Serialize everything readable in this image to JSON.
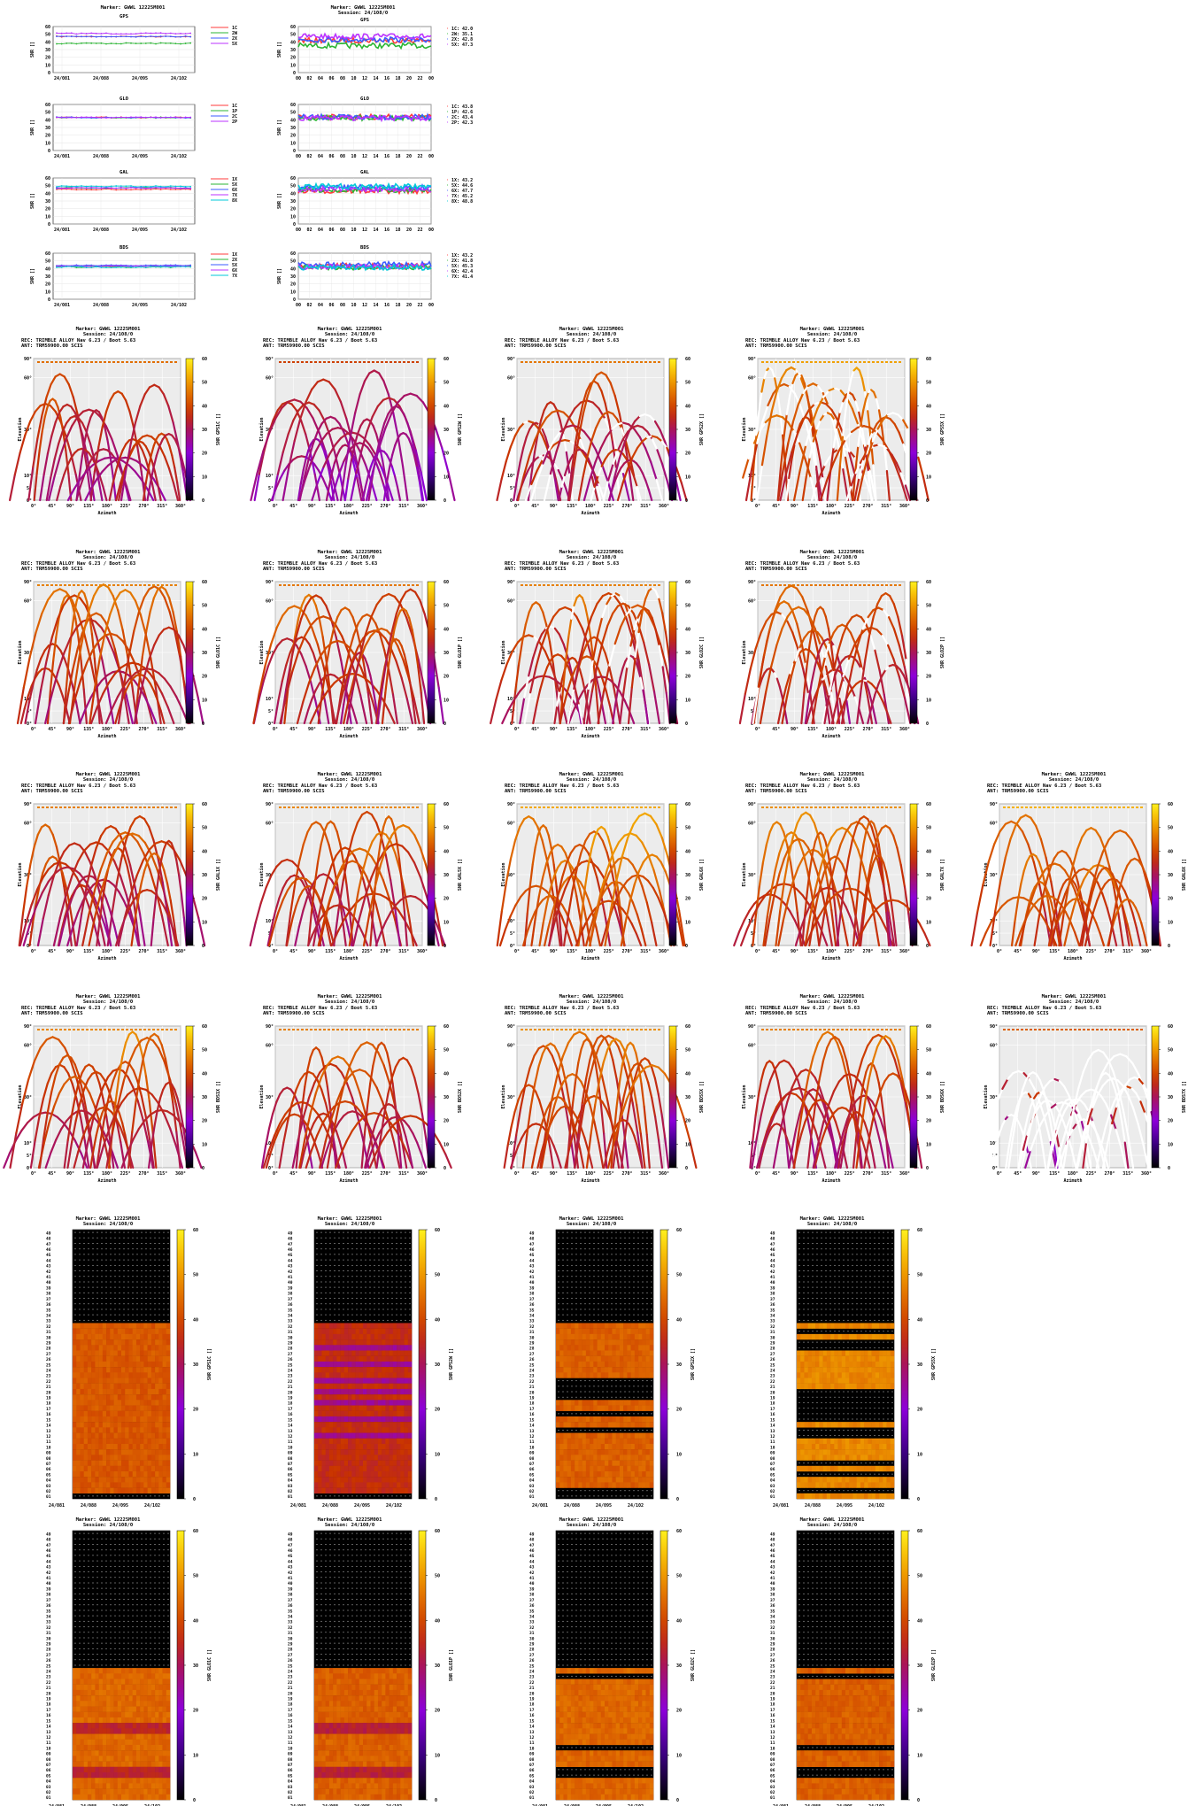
{
  "marker": "Marker: GWWL 12225M001",
  "session": "Session: 24/108/0",
  "rec_line": "REC: TRIMBLE ALLOY          Nav 6.23 / Boot 5.63",
  "ant_line": "ANT: TRM59900.00    SCIS",
  "labels": {
    "snr_axis": "SNR []",
    "elevation": "Elevation",
    "azimuth": "Azimuth"
  },
  "colors": {
    "gps": "#ff3b3b",
    "glo": "#2bb534",
    "gal": "#3b5bff",
    "bds": "#bb33ff",
    "cyan": "#00c9d8",
    "skyplot_bg": "#ececec",
    "heatmap_bg": "#000000"
  },
  "chart_data": {
    "type": "composite",
    "snr_rows": [
      {
        "name": "GPS",
        "daily": {
          "x_ticks": [
            "24/081",
            "24/088",
            "24/095",
            "24/102"
          ],
          "y_ticks": [
            0,
            10,
            20,
            30,
            40,
            50,
            60
          ],
          "ylim": [
            0,
            60
          ],
          "legend": [
            "1C",
            "2W",
            "2X",
            "5X"
          ],
          "series_levels": [
            47,
            38,
            47,
            51
          ]
        },
        "session": {
          "title": "GPS",
          "x_ticks": [
            "00",
            "02",
            "04",
            "06",
            "08",
            "10",
            "12",
            "14",
            "16",
            "18",
            "20",
            "22",
            "00"
          ],
          "y_ticks": [
            0,
            10,
            20,
            30,
            40,
            50,
            60
          ],
          "ylim": [
            0,
            60
          ],
          "legend": [
            "1C: 42.0",
            "2W: 35.1",
            "2X: 42.8",
            "5X: 47.3"
          ],
          "series_levels": [
            42.0,
            35.1,
            42.8,
            47.3
          ]
        }
      },
      {
        "name": "GLO",
        "daily": {
          "title": "GLO",
          "x_ticks": [
            "24/081",
            "24/088",
            "24/095",
            "24/102"
          ],
          "y_ticks": [
            0,
            10,
            20,
            30,
            40,
            50,
            60
          ],
          "ylim": [
            0,
            60
          ],
          "legend": [
            "1C",
            "1P",
            "2C",
            "2P"
          ],
          "series_levels": [
            43,
            43,
            43,
            43
          ]
        },
        "session": {
          "title": "GLO",
          "x_ticks": [
            "00",
            "02",
            "04",
            "06",
            "08",
            "10",
            "12",
            "14",
            "16",
            "18",
            "20",
            "22",
            "00"
          ],
          "y_ticks": [
            0,
            10,
            20,
            30,
            40,
            50,
            60
          ],
          "ylim": [
            0,
            60
          ],
          "legend": [
            "1C: 43.8",
            "1P: 42.6",
            "2C: 43.4",
            "2P: 42.3"
          ],
          "series_levels": [
            43.8,
            42.6,
            43.4,
            42.3
          ]
        }
      },
      {
        "name": "GAL",
        "daily": {
          "title": "GAL",
          "x_ticks": [
            "24/081",
            "24/088",
            "24/095",
            "24/102"
          ],
          "y_ticks": [
            0,
            10,
            20,
            30,
            40,
            50,
            60
          ],
          "ylim": [
            0,
            60
          ],
          "legend": [
            "1X",
            "5X",
            "6X",
            "7X",
            "8X"
          ],
          "series_levels": [
            45,
            47,
            47,
            47,
            49
          ]
        },
        "session": {
          "title": "GAL",
          "x_ticks": [
            "00",
            "02",
            "04",
            "06",
            "08",
            "10",
            "12",
            "14",
            "16",
            "18",
            "20",
            "22",
            "00"
          ],
          "y_ticks": [
            0,
            10,
            20,
            30,
            40,
            50,
            60
          ],
          "ylim": [
            0,
            60
          ],
          "legend": [
            "1X: 43.2",
            "5X: 44.6",
            "6X: 47.7",
            "7X: 45.2",
            "8X: 48.8"
          ],
          "series_levels": [
            43.2,
            44.6,
            47.7,
            45.2,
            48.8
          ]
        }
      },
      {
        "name": "BDS",
        "daily": {
          "title": "BDS",
          "x_ticks": [
            "24/081",
            "24/088",
            "24/095",
            "24/102"
          ],
          "y_ticks": [
            0,
            10,
            20,
            30,
            40,
            50,
            60
          ],
          "ylim": [
            0,
            60
          ],
          "legend": [
            "1X",
            "2X",
            "5X",
            "6X",
            "7X"
          ],
          "series_levels": [
            43,
            42,
            44,
            43,
            42
          ]
        },
        "session": {
          "title": "BDS",
          "x_ticks": [
            "00",
            "02",
            "04",
            "06",
            "08",
            "10",
            "12",
            "14",
            "16",
            "18",
            "20",
            "22",
            "00"
          ],
          "y_ticks": [
            0,
            10,
            20,
            30,
            40,
            50,
            60
          ],
          "ylim": [
            0,
            60
          ],
          "legend": [
            "1X: 43.2",
            "2X: 41.8",
            "5X: 45.3",
            "6X: 42.4",
            "7X: 41.4"
          ],
          "series_levels": [
            43.2,
            41.8,
            45.3,
            42.4,
            41.4
          ]
        }
      }
    ],
    "skyplots": {
      "x_ticks": [
        "0°",
        "45°",
        "90°",
        "135°",
        "180°",
        "225°",
        "270°",
        "315°",
        "360°"
      ],
      "y_ticks": [
        "0°",
        "5°",
        "10°",
        "30°",
        "60°",
        "90°"
      ],
      "colorbar_ticks": [
        0,
        10,
        20,
        30,
        40,
        50,
        60
      ],
      "rows": [
        [
          {
            "cbar": "SNR GPS1C []",
            "mean": 42,
            "low_tail": false,
            "sparse": 0
          },
          {
            "cbar": "SNR GPS2W []",
            "mean": 36,
            "low_tail": true,
            "sparse": 0
          },
          {
            "cbar": "SNR GPS2X []",
            "mean": 43,
            "low_tail": false,
            "sparse": 0.15
          },
          {
            "cbar": "SNR GPS5X []",
            "mean": 48,
            "low_tail": false,
            "sparse": 0.35
          }
        ],
        [
          {
            "cbar": "SNR GLO1C []",
            "mean": 44,
            "low_tail": false,
            "sparse": 0
          },
          {
            "cbar": "SNR GLO1P []",
            "mean": 43,
            "low_tail": false,
            "sparse": 0
          },
          {
            "cbar": "SNR GLO2C []",
            "mean": 44,
            "low_tail": false,
            "sparse": 0.1
          },
          {
            "cbar": "SNR GLO2P []",
            "mean": 43,
            "low_tail": false,
            "sparse": 0.1
          }
        ],
        [
          {
            "cbar": "SNR GAL1X []",
            "mean": 44,
            "low_tail": false,
            "sparse": 0
          },
          {
            "cbar": "SNR GAL5X []",
            "mean": 45,
            "low_tail": false,
            "sparse": 0
          },
          {
            "cbar": "SNR GAL6X []",
            "mean": 49,
            "low_tail": false,
            "sparse": 0
          },
          {
            "cbar": "SNR GAL7X []",
            "mean": 46,
            "low_tail": false,
            "sparse": 0
          },
          {
            "cbar": "SNR GAL8X []",
            "mean": 50,
            "low_tail": false,
            "sparse": 0
          }
        ],
        [
          {
            "cbar": "SNR BDS1X []",
            "mean": 45,
            "low_tail": false,
            "sparse": 0
          },
          {
            "cbar": "SNR BDS2X []",
            "mean": 44,
            "low_tail": false,
            "sparse": 0
          },
          {
            "cbar": "SNR BDS5X []",
            "mean": 46,
            "low_tail": false,
            "sparse": 0
          },
          {
            "cbar": "SNR BDS6X []",
            "mean": 44,
            "low_tail": false,
            "sparse": 0
          },
          {
            "cbar": "SNR BDS7X []",
            "mean": 40,
            "low_tail": false,
            "sparse": 0.9
          }
        ]
      ]
    },
    "heatmaps": {
      "x_ticks": [
        "24/081",
        "24/088",
        "24/095",
        "24/102"
      ],
      "colorbar_ticks": [
        0,
        10,
        20,
        30,
        40,
        50,
        60
      ],
      "sat_labels": [
        "49",
        "48",
        "47",
        "46",
        "45",
        "44",
        "43",
        "42",
        "41",
        "40",
        "39",
        "38",
        "37",
        "36",
        "35",
        "34",
        "33",
        "32",
        "31",
        "30",
        "29",
        "28",
        "27",
        "26",
        "25",
        "24",
        "23",
        "22",
        "21",
        "20",
        "19",
        "18",
        "17",
        "16",
        "15",
        "14",
        "13",
        "12",
        "11",
        "10",
        "09",
        "08",
        "07",
        "06",
        "05",
        "04",
        "03",
        "02",
        "01"
      ],
      "rows": [
        [
          {
            "cbar": "SNR GPS1C []",
            "active_max": 32,
            "missing": [
              1
            ],
            "mean": 42,
            "weak_sats": []
          },
          {
            "cbar": "SNR GPS2W []",
            "active_max": 32,
            "missing": [
              1
            ],
            "mean": 36,
            "weak_sats": [
              28,
              25,
              22,
              20,
              18,
              15,
              12
            ]
          },
          {
            "cbar": "SNR GPS2X []",
            "active_max": 32,
            "missing": [
              1,
              2,
              13,
              16,
              19,
              20,
              21,
              22
            ],
            "mean": 43,
            "weak_sats": []
          },
          {
            "cbar": "SNR GPS5X []",
            "active_max": 32,
            "missing": [
              2,
              5,
              7,
              12,
              13,
              15,
              16,
              17,
              18,
              19,
              20,
              28,
              29,
              31
            ],
            "mean": 48,
            "weak_sats": []
          }
        ],
        [
          {
            "cbar": "SNR GLO1C []",
            "active_max": 24,
            "missing": [],
            "mean": 44,
            "weak_sats": [
              13,
              14,
              5,
              6
            ]
          },
          {
            "cbar": "SNR GLO1P []",
            "active_max": 24,
            "missing": [],
            "mean": 43,
            "weak_sats": [
              13,
              14,
              5,
              6
            ]
          },
          {
            "cbar": "SNR GLO2C []",
            "active_max": 24,
            "missing": [
              5,
              6,
              10,
              23
            ],
            "mean": 44,
            "weak_sats": []
          },
          {
            "cbar": "SNR GLO2P []",
            "active_max": 24,
            "missing": [
              5,
              6,
              10,
              23
            ],
            "mean": 43,
            "weak_sats": []
          }
        ]
      ]
    }
  }
}
